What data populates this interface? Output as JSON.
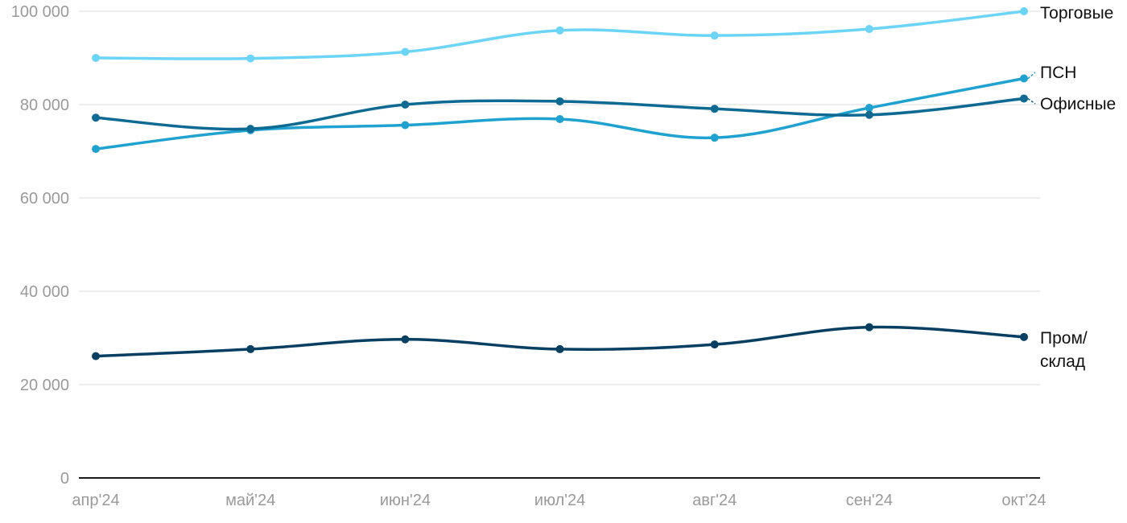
{
  "chart_data": {
    "type": "line",
    "categories": [
      "апр'24",
      "май'24",
      "июн'24",
      "июл'24",
      "авг'24",
      "сен'24",
      "окт'24"
    ],
    "y_ticks": [
      "0",
      "20 000",
      "40 000",
      "60 000",
      "80 000",
      "100 000"
    ],
    "ylim": [
      0,
      100000
    ],
    "grid": true,
    "legend": "labels at line ends, right",
    "series": [
      {
        "name": "Торговые",
        "label_lines": [
          "Торговые"
        ],
        "color": "#6cd4f6",
        "values": [
          90000,
          89900,
          91300,
          95900,
          94800,
          96200,
          100000
        ]
      },
      {
        "name": "ПСН",
        "label_lines": [
          "ПСН"
        ],
        "color": "#1fa2d0",
        "values": [
          70500,
          74500,
          75600,
          76900,
          72900,
          79300,
          85600
        ]
      },
      {
        "name": "Офисные",
        "label_lines": [
          "Офисные"
        ],
        "color": "#0e6a92",
        "values": [
          77200,
          74800,
          80000,
          80700,
          79100,
          77800,
          81300
        ]
      },
      {
        "name": "Пром/склад",
        "label_lines": [
          "Пром/",
          "склад"
        ],
        "color": "#073f62",
        "values": [
          26100,
          27600,
          29700,
          27600,
          28600,
          32300,
          30200
        ]
      }
    ]
  }
}
